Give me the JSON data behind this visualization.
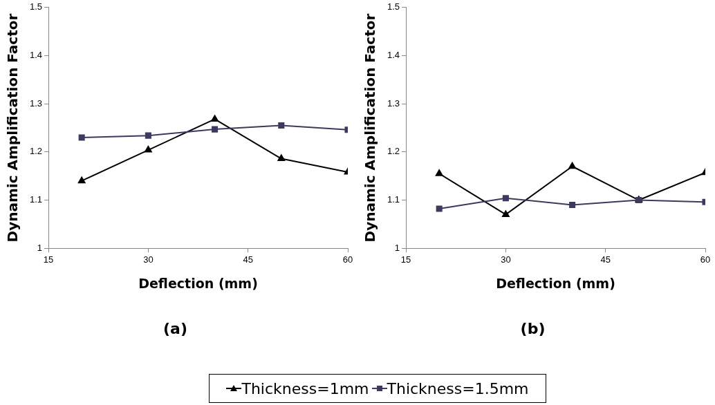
{
  "chart_data": [
    {
      "type": "line",
      "title": "(a)",
      "xlabel": "Deflection (mm)",
      "ylabel": "Dynamic Amplification Factor",
      "x": [
        20,
        30,
        40,
        50,
        60
      ],
      "xlim": [
        15,
        60
      ],
      "xticks": [
        15,
        30,
        45,
        60
      ],
      "ylim": [
        1,
        1.5
      ],
      "yticks": [
        1,
        1.1,
        1.2,
        1.3,
        1.4,
        1.5
      ],
      "grid": false,
      "legend": "bottom",
      "series": [
        {
          "name": "Thickness=1mm",
          "color": "#000000",
          "marker": "triangle",
          "values": [
            1.14,
            1.204,
            1.268,
            1.186,
            1.158
          ]
        },
        {
          "name": "Thickness=1.5mm",
          "color": "#3c3a5e",
          "marker": "square",
          "values": [
            1.23,
            1.234,
            1.247,
            1.255,
            1.246
          ]
        }
      ]
    },
    {
      "type": "line",
      "title": "(b)",
      "xlabel": "Deflection (mm)",
      "ylabel": "Dynamic Amplification Factor",
      "x": [
        20,
        30,
        40,
        50,
        60
      ],
      "xlim": [
        15,
        60
      ],
      "xticks": [
        15,
        30,
        45,
        60
      ],
      "ylim": [
        1,
        1.5
      ],
      "yticks": [
        1,
        1.1,
        1.2,
        1.3,
        1.4,
        1.5
      ],
      "grid": false,
      "series": [
        {
          "color": "#000000",
          "marker": "triangle",
          "values": [
            1.155,
            1.07,
            1.17,
            1.1,
            1.157
          ]
        },
        {
          "color": "#3c3a5e",
          "marker": "square",
          "values": [
            1.082,
            1.104,
            1.09,
            1.1,
            1.096
          ]
        }
      ]
    }
  ]
}
